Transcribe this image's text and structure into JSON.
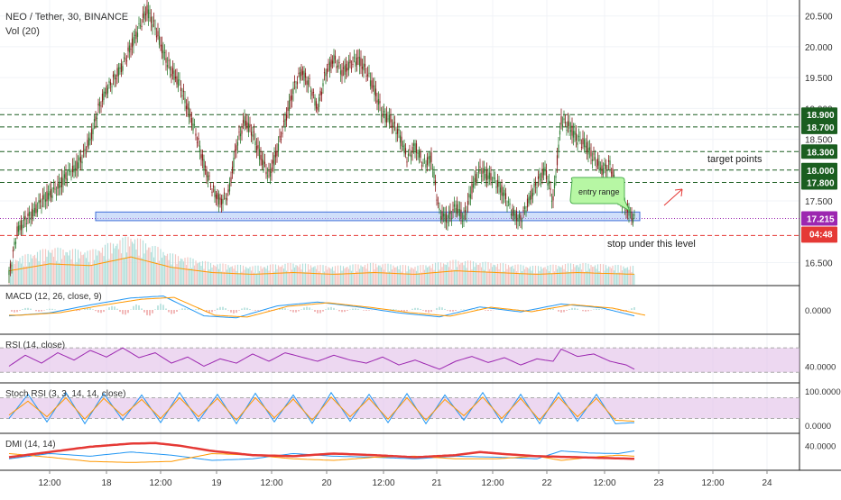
{
  "chart_data": {
    "type": "candlestick",
    "symbol_title": "NEO / Tether, 30, BINANCE",
    "volume_label": "Vol (20)",
    "price_axis": {
      "ylim": [
        16.2,
        20.7
      ],
      "ticks": [
        "20.500",
        "20.000",
        "19.500",
        "19.000",
        "18.500",
        "17.500",
        "16.500"
      ],
      "tick_values": [
        20.5,
        20.0,
        19.5,
        19.0,
        18.5,
        17.5,
        16.5
      ]
    },
    "time_axis": {
      "labels": [
        "12:00",
        "18",
        "12:00",
        "19",
        "12:00",
        "20",
        "12:00",
        "21",
        "12:00",
        "22",
        "12:00",
        "23",
        "12:00",
        "24"
      ],
      "tick_index": [
        0,
        1,
        2,
        3,
        4,
        5,
        6,
        7,
        8,
        9,
        10,
        11,
        12,
        13
      ]
    },
    "price_series": [
      [
        0,
        16.3
      ],
      [
        6,
        17.0
      ],
      [
        12,
        17.2
      ],
      [
        18,
        17.3
      ],
      [
        24,
        17.5
      ],
      [
        30,
        17.6
      ],
      [
        36,
        17.7
      ],
      [
        42,
        17.9
      ],
      [
        48,
        18.0
      ],
      [
        54,
        18.2
      ],
      [
        60,
        18.5
      ],
      [
        66,
        19.0
      ],
      [
        72,
        19.3
      ],
      [
        78,
        19.5
      ],
      [
        84,
        19.7
      ],
      [
        90,
        20.0
      ],
      [
        96,
        20.3
      ],
      [
        102,
        20.6
      ],
      [
        108,
        20.3
      ],
      [
        114,
        19.9
      ],
      [
        120,
        19.6
      ],
      [
        126,
        19.4
      ],
      [
        132,
        19.0
      ],
      [
        138,
        18.6
      ],
      [
        144,
        18.1
      ],
      [
        150,
        17.7
      ],
      [
        156,
        17.5
      ],
      [
        162,
        17.6
      ],
      [
        168,
        18.4
      ],
      [
        174,
        18.8
      ],
      [
        180,
        18.6
      ],
      [
        186,
        18.2
      ],
      [
        192,
        17.9
      ],
      [
        198,
        18.3
      ],
      [
        204,
        18.8
      ],
      [
        210,
        19.3
      ],
      [
        216,
        19.6
      ],
      [
        222,
        19.4
      ],
      [
        228,
        19.0
      ],
      [
        234,
        19.6
      ],
      [
        240,
        19.8
      ],
      [
        246,
        19.6
      ],
      [
        252,
        19.7
      ],
      [
        258,
        19.8
      ],
      [
        264,
        19.6
      ],
      [
        270,
        19.3
      ],
      [
        276,
        18.9
      ],
      [
        282,
        18.8
      ],
      [
        288,
        18.6
      ],
      [
        294,
        18.2
      ],
      [
        300,
        18.4
      ],
      [
        306,
        18.1
      ],
      [
        312,
        18.2
      ],
      [
        318,
        17.3
      ],
      [
        324,
        17.2
      ],
      [
        330,
        17.4
      ],
      [
        336,
        17.2
      ],
      [
        342,
        17.7
      ],
      [
        348,
        18.0
      ],
      [
        354,
        17.9
      ],
      [
        360,
        17.8
      ],
      [
        366,
        17.6
      ],
      [
        372,
        17.3
      ],
      [
        378,
        17.2
      ],
      [
        384,
        17.5
      ],
      [
        390,
        17.8
      ],
      [
        396,
        18.0
      ],
      [
        402,
        17.5
      ],
      [
        408,
        18.8
      ],
      [
        414,
        18.7
      ],
      [
        420,
        18.5
      ],
      [
        426,
        18.4
      ],
      [
        432,
        18.2
      ],
      [
        438,
        18.0
      ],
      [
        444,
        18.1
      ],
      [
        450,
        17.6
      ],
      [
        456,
        17.4
      ],
      [
        462,
        17.2
      ]
    ],
    "volume_series": [
      [
        0,
        0.4
      ],
      [
        30,
        0.6
      ],
      [
        60,
        0.55
      ],
      [
        90,
        0.8
      ],
      [
        120,
        0.5
      ],
      [
        150,
        0.35
      ],
      [
        180,
        0.3
      ],
      [
        210,
        0.35
      ],
      [
        240,
        0.3
      ],
      [
        270,
        0.35
      ],
      [
        300,
        0.3
      ],
      [
        330,
        0.4
      ],
      [
        360,
        0.35
      ],
      [
        390,
        0.3
      ],
      [
        420,
        0.35
      ],
      [
        462,
        0.3
      ]
    ],
    "horizontal_levels": [
      {
        "label": "18.900",
        "value": 18.9,
        "color": "#1b5e20",
        "style": "dashed"
      },
      {
        "label": "18.700",
        "value": 18.7,
        "color": "#1b5e20",
        "style": "dashed"
      },
      {
        "label": "18.300",
        "value": 18.3,
        "color": "#1b5e20",
        "style": "dashed"
      },
      {
        "label": "18.000",
        "value": 18.0,
        "color": "#1b5e20",
        "style": "dashed"
      },
      {
        "label": "17.800",
        "value": 17.8,
        "color": "#1b5e20",
        "style": "dashed"
      },
      {
        "label": "17.215",
        "value": 17.215,
        "color": "#9c27b0",
        "style": "dotted"
      },
      {
        "label": "16.940",
        "value": 16.94,
        "color": "#e53935",
        "style": "dashed"
      }
    ],
    "countdown_label": "04:48",
    "countdown_color": "#e53935",
    "entry_range": {
      "low": 17.18,
      "high": 17.32,
      "x_start": 64,
      "x_end": 466
    },
    "annotations": {
      "target_text": "target points",
      "stop_text": "stop under this level",
      "entry_text": "entry range"
    },
    "indicators": [
      {
        "name": "macd",
        "label": "MACD (12, 26, close, 9)",
        "ticks": [
          "0.0000"
        ],
        "tick_values": [
          0.0
        ],
        "ylim": [
          -0.2,
          0.2
        ]
      },
      {
        "name": "rsi",
        "label": "RSI (14, close)",
        "ticks": [
          "40.0000"
        ],
        "tick_values": [
          40
        ],
        "ylim": [
          20,
          85
        ],
        "band": [
          30,
          70
        ]
      },
      {
        "name": "stoch-rsi",
        "label": "Stoch RSI (3, 3, 14, 14, close)",
        "ticks": [
          "100.0000",
          "0.0000"
        ],
        "tick_values": [
          100,
          0
        ],
        "ylim": [
          -10,
          110
        ],
        "band": [
          20,
          80
        ]
      },
      {
        "name": "dmi",
        "label": "DMI (14, 14)",
        "ticks": [
          "40.0000"
        ],
        "tick_values": [
          40
        ],
        "ylim": [
          0,
          55
        ]
      }
    ],
    "macd_series": [
      [
        0,
        -0.06
      ],
      [
        30,
        -0.03
      ],
      [
        60,
        0.05
      ],
      [
        90,
        0.12
      ],
      [
        114,
        0.14
      ],
      [
        144,
        -0.06
      ],
      [
        168,
        -0.08
      ],
      [
        198,
        0.04
      ],
      [
        228,
        0.08
      ],
      [
        258,
        0.03
      ],
      [
        288,
        -0.03
      ],
      [
        318,
        -0.07
      ],
      [
        348,
        0.03
      ],
      [
        378,
        -0.02
      ],
      [
        408,
        0.06
      ],
      [
        438,
        0.02
      ],
      [
        462,
        -0.06
      ]
    ],
    "rsi_series": [
      [
        0,
        40
      ],
      [
        12,
        58
      ],
      [
        24,
        45
      ],
      [
        36,
        62
      ],
      [
        48,
        50
      ],
      [
        60,
        66
      ],
      [
        72,
        55
      ],
      [
        84,
        70
      ],
      [
        96,
        54
      ],
      [
        108,
        62
      ],
      [
        120,
        45
      ],
      [
        132,
        55
      ],
      [
        144,
        40
      ],
      [
        156,
        52
      ],
      [
        168,
        45
      ],
      [
        180,
        60
      ],
      [
        192,
        48
      ],
      [
        204,
        62
      ],
      [
        216,
        55
      ],
      [
        228,
        48
      ],
      [
        240,
        58
      ],
      [
        252,
        50
      ],
      [
        264,
        45
      ],
      [
        276,
        55
      ],
      [
        288,
        42
      ],
      [
        300,
        50
      ],
      [
        312,
        40
      ],
      [
        318,
        35
      ],
      [
        330,
        48
      ],
      [
        342,
        56
      ],
      [
        354,
        46
      ],
      [
        366,
        54
      ],
      [
        378,
        42
      ],
      [
        390,
        52
      ],
      [
        402,
        48
      ],
      [
        408,
        68
      ],
      [
        420,
        56
      ],
      [
        432,
        60
      ],
      [
        444,
        48
      ],
      [
        456,
        42
      ],
      [
        462,
        35
      ]
    ],
    "stoch_k": [
      [
        0,
        20
      ],
      [
        14,
        90
      ],
      [
        28,
        10
      ],
      [
        42,
        95
      ],
      [
        56,
        5
      ],
      [
        70,
        92
      ],
      [
        84,
        15
      ],
      [
        98,
        88
      ],
      [
        112,
        8
      ],
      [
        126,
        95
      ],
      [
        140,
        12
      ],
      [
        154,
        90
      ],
      [
        168,
        5
      ],
      [
        182,
        93
      ],
      [
        196,
        10
      ],
      [
        210,
        88
      ],
      [
        224,
        6
      ],
      [
        238,
        95
      ],
      [
        252,
        12
      ],
      [
        266,
        90
      ],
      [
        280,
        8
      ],
      [
        294,
        92
      ],
      [
        308,
        5
      ],
      [
        322,
        88
      ],
      [
        336,
        15
      ],
      [
        350,
        95
      ],
      [
        364,
        8
      ],
      [
        378,
        90
      ],
      [
        392,
        5
      ],
      [
        406,
        95
      ],
      [
        420,
        12
      ],
      [
        434,
        90
      ],
      [
        448,
        5
      ],
      [
        462,
        8
      ]
    ],
    "stoch_d": [
      [
        0,
        30
      ],
      [
        14,
        70
      ],
      [
        28,
        25
      ],
      [
        42,
        80
      ],
      [
        56,
        18
      ],
      [
        70,
        78
      ],
      [
        84,
        28
      ],
      [
        98,
        75
      ],
      [
        112,
        20
      ],
      [
        126,
        80
      ],
      [
        140,
        25
      ],
      [
        154,
        78
      ],
      [
        168,
        15
      ],
      [
        182,
        80
      ],
      [
        196,
        22
      ],
      [
        210,
        76
      ],
      [
        224,
        15
      ],
      [
        238,
        82
      ],
      [
        252,
        25
      ],
      [
        266,
        78
      ],
      [
        280,
        18
      ],
      [
        294,
        80
      ],
      [
        308,
        15
      ],
      [
        322,
        75
      ],
      [
        336,
        28
      ],
      [
        350,
        82
      ],
      [
        364,
        20
      ],
      [
        378,
        78
      ],
      [
        392,
        15
      ],
      [
        406,
        82
      ],
      [
        420,
        25
      ],
      [
        434,
        78
      ],
      [
        448,
        15
      ],
      [
        462,
        12
      ]
    ],
    "dmi_adx": [
      [
        0,
        18
      ],
      [
        30,
        28
      ],
      [
        60,
        38
      ],
      [
        90,
        44
      ],
      [
        108,
        45
      ],
      [
        126,
        40
      ],
      [
        150,
        30
      ],
      [
        180,
        22
      ],
      [
        210,
        20
      ],
      [
        240,
        25
      ],
      [
        270,
        22
      ],
      [
        300,
        18
      ],
      [
        330,
        22
      ],
      [
        348,
        28
      ],
      [
        366,
        24
      ],
      [
        390,
        20
      ],
      [
        420,
        18
      ],
      [
        462,
        15
      ]
    ],
    "dmi_plus": [
      [
        0,
        15
      ],
      [
        30,
        25
      ],
      [
        60,
        20
      ],
      [
        90,
        28
      ],
      [
        120,
        22
      ],
      [
        150,
        12
      ],
      [
        180,
        15
      ],
      [
        210,
        25
      ],
      [
        240,
        20
      ],
      [
        270,
        18
      ],
      [
        300,
        15
      ],
      [
        330,
        20
      ],
      [
        360,
        18
      ],
      [
        390,
        15
      ],
      [
        408,
        30
      ],
      [
        430,
        26
      ],
      [
        450,
        25
      ],
      [
        462,
        30
      ]
    ],
    "dmi_minus": [
      [
        0,
        25
      ],
      [
        30,
        18
      ],
      [
        60,
        10
      ],
      [
        90,
        8
      ],
      [
        120,
        10
      ],
      [
        150,
        25
      ],
      [
        180,
        22
      ],
      [
        210,
        15
      ],
      [
        240,
        12
      ],
      [
        270,
        18
      ],
      [
        300,
        20
      ],
      [
        330,
        15
      ],
      [
        360,
        15
      ],
      [
        390,
        20
      ],
      [
        408,
        12
      ],
      [
        430,
        18
      ],
      [
        450,
        22
      ],
      [
        462,
        20
      ]
    ],
    "colors": {
      "up": "#26a69a",
      "down": "#8b1a1a",
      "bull_body": "#2e7d32",
      "macd_line": "#2196f3",
      "signal_line": "#ff9800",
      "rsi_line": "#9c27b0",
      "band_fill": "#e1bee7",
      "adx_line": "#e53935",
      "entry_box": "#a9c4f5",
      "entry_callout": "#b7f7a4"
    }
  }
}
